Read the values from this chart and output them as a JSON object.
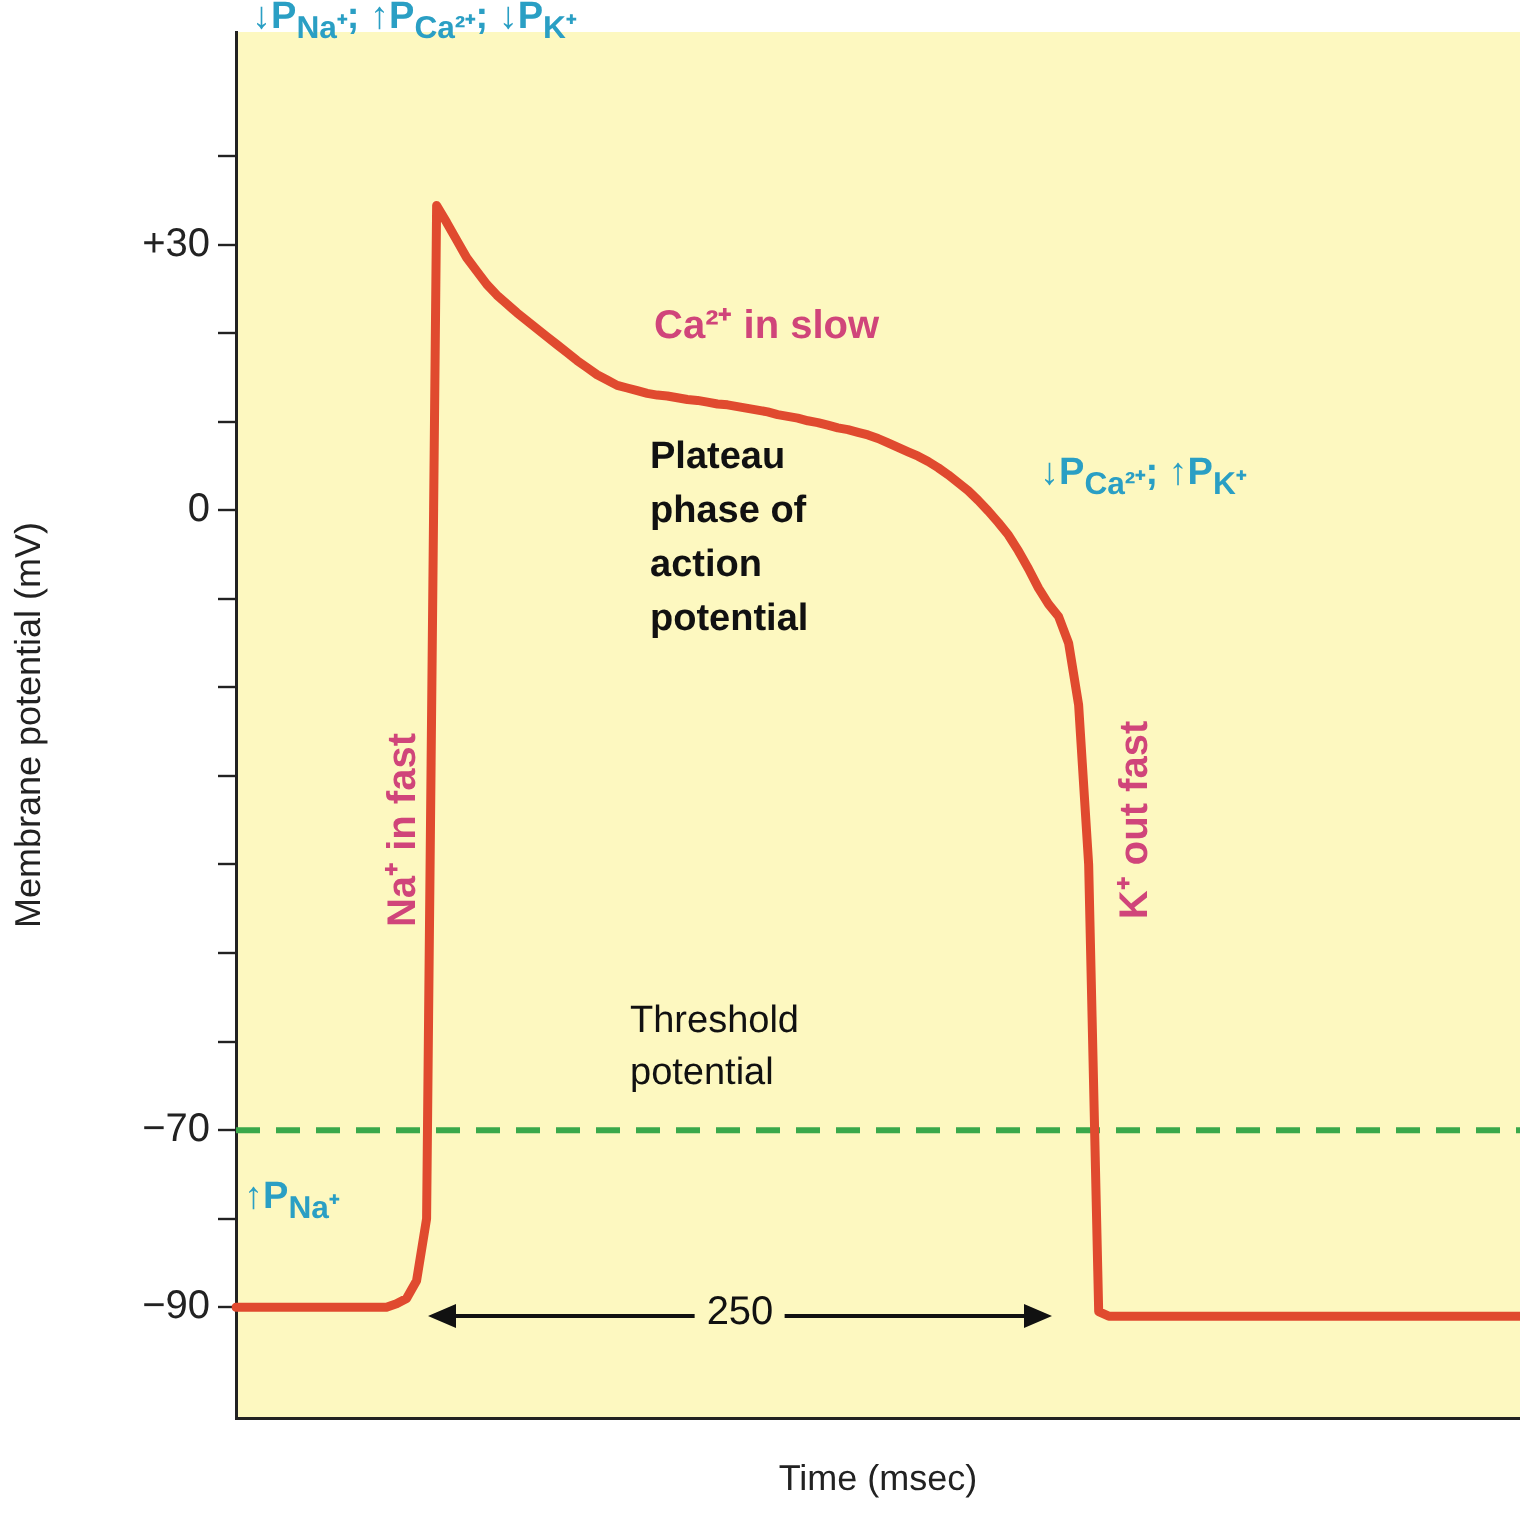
{
  "chart_data": {
    "type": "line",
    "xlabel": "Time (msec)",
    "ylabel": "Membrane potential (mV)",
    "categories": [
      null,
      null,
      null,
      null,
      null,
      null,
      null,
      null,
      null,
      null,
      null,
      null,
      null,
      null,
      null,
      null,
      null,
      null,
      null,
      null,
      null,
      null,
      null,
      null,
      null,
      null,
      null,
      null,
      null,
      null,
      null,
      null,
      null,
      null,
      null,
      null,
      null,
      null,
      null,
      null,
      null,
      null,
      null,
      null,
      null,
      null,
      null,
      null,
      null,
      null,
      null,
      null,
      null,
      null,
      null,
      null,
      null,
      null,
      null,
      null,
      null,
      null,
      null,
      null,
      null,
      null,
      null,
      null,
      null,
      null,
      null,
      null,
      null,
      null,
      null,
      null,
      null,
      null,
      null,
      null,
      null,
      null,
      null,
      null,
      null,
      null,
      null,
      null,
      null,
      null,
      null,
      null,
      null,
      null,
      null,
      null,
      null,
      null,
      null,
      null,
      null,
      null,
      null,
      null,
      null,
      null,
      null,
      null,
      null,
      null,
      null,
      null,
      null,
      null,
      null,
      null,
      null,
      null,
      null,
      null,
      null,
      null,
      null,
      null,
      null,
      null,
      null,
      null,
      null
    ],
    "series": [
      {
        "color": "#e04a2f",
        "values": [
          -90,
          -90,
          -90,
          -90,
          -90,
          -90,
          -90,
          -90,
          -90,
          -90,
          -90,
          -90,
          -90,
          -90,
          -90,
          -90,
          -89.6,
          -89,
          -87,
          -80,
          34.4,
          32.5,
          30.5,
          28.5,
          27,
          25.5,
          24.3,
          23.3,
          22.3,
          21.4,
          20.5,
          19.6,
          18.7,
          17.8,
          16.9,
          16.1,
          15.3,
          14.7,
          14.1,
          13.8,
          13.5,
          13.2,
          13,
          12.9,
          12.7,
          12.5,
          12.4,
          12.2,
          12,
          11.9,
          11.7,
          11.5,
          11.3,
          11.1,
          10.8,
          10.6,
          10.4,
          10.1,
          9.9,
          9.6,
          9.3,
          9.1,
          8.8,
          8.5,
          8.1,
          7.6,
          7.1,
          6.6,
          6.1,
          5.5,
          4.8,
          4,
          3.1,
          2.2,
          1.1,
          -0.1,
          -1.4,
          -2.8,
          -4.6,
          -6.6,
          -8.8,
          -10.6,
          -12,
          -15,
          -22,
          -40,
          -90.5,
          -91,
          -91,
          -91,
          -91,
          -91,
          -91,
          -91,
          -91,
          -91,
          -91,
          -91,
          -91,
          -91,
          -91,
          -91,
          -91,
          -91,
          -91,
          -91,
          -91,
          -91,
          -91,
          -91,
          -91,
          -91,
          -91,
          -91,
          -91,
          -91,
          -91,
          -91,
          -91,
          -91,
          -91,
          -91,
          -91,
          -91,
          -91,
          -91,
          -91,
          -91,
          -91
        ]
      }
    ],
    "ylim": [
      -102.5,
      54
    ],
    "yticks": [
      {
        "value": 40,
        "label": null
      },
      {
        "value": 30,
        "label": "+30"
      },
      {
        "value": 20,
        "label": null
      },
      {
        "value": 10,
        "label": null
      },
      0,
      {
        "value": -10,
        "label": null
      },
      {
        "value": -20,
        "label": null
      },
      {
        "value": -30,
        "label": null
      },
      {
        "value": -40,
        "label": null
      },
      {
        "value": -50,
        "label": null
      },
      {
        "value": -60,
        "label": null
      },
      {
        "value": -70,
        "label": "−70"
      },
      {
        "value": -80,
        "label": null
      },
      {
        "value": -90,
        "label": "−90"
      }
    ],
    "tick_labels": "y",
    "marker": "none",
    "line_style": "solid",
    "ref_lines": [
      {
        "axis": "y",
        "value": -70,
        "label": "Threshold\npotential",
        "color": "#3aa84a",
        "line_style": "dashed"
      }
    ],
    "annotations": [
      "↓P$_{Na⁺}$; ↑P$_{Ca²⁺}$; ↓P$_{K⁺}$",
      "Ca²⁺ in slow",
      "Plateau\nphase of\naction\npotential",
      "↓P$_{Ca²⁺}$; ↑P$_{K⁺}$",
      "Na⁺ in fast",
      "K⁺ out fast",
      "↑P$_{Na⁺}$",
      "250"
    ]
  }
}
